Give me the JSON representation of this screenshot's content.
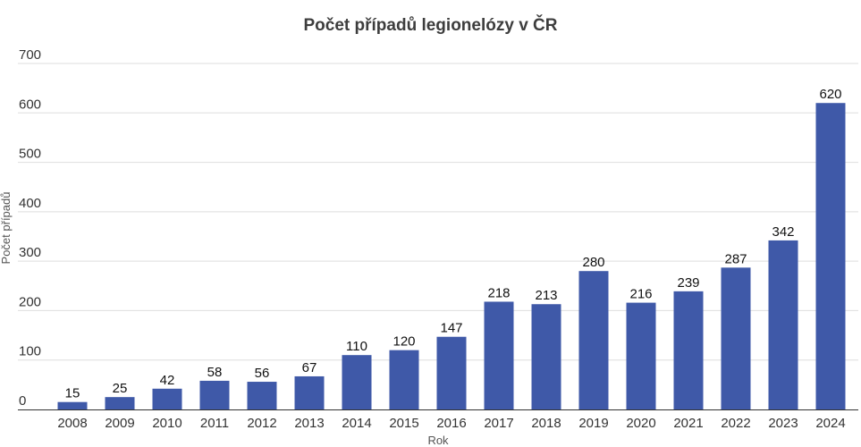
{
  "chart_data": {
    "type": "bar",
    "title": "Počet případů legionelózy v ČR",
    "xlabel": "Rok",
    "ylabel": "Počet případů",
    "ylim": [
      0,
      700
    ],
    "yticks": [
      0,
      100,
      200,
      300,
      400,
      500,
      600,
      700
    ],
    "grid": true,
    "categories": [
      "2008",
      "2009",
      "2010",
      "2011",
      "2012",
      "2013",
      "2014",
      "2015",
      "2016",
      "2017",
      "2018",
      "2019",
      "2020",
      "2021",
      "2022",
      "2023",
      "2024"
    ],
    "values": [
      15,
      25,
      42,
      58,
      56,
      67,
      110,
      120,
      147,
      218,
      213,
      280,
      216,
      239,
      287,
      342,
      620
    ],
    "bar_color": "#3f59a8"
  }
}
